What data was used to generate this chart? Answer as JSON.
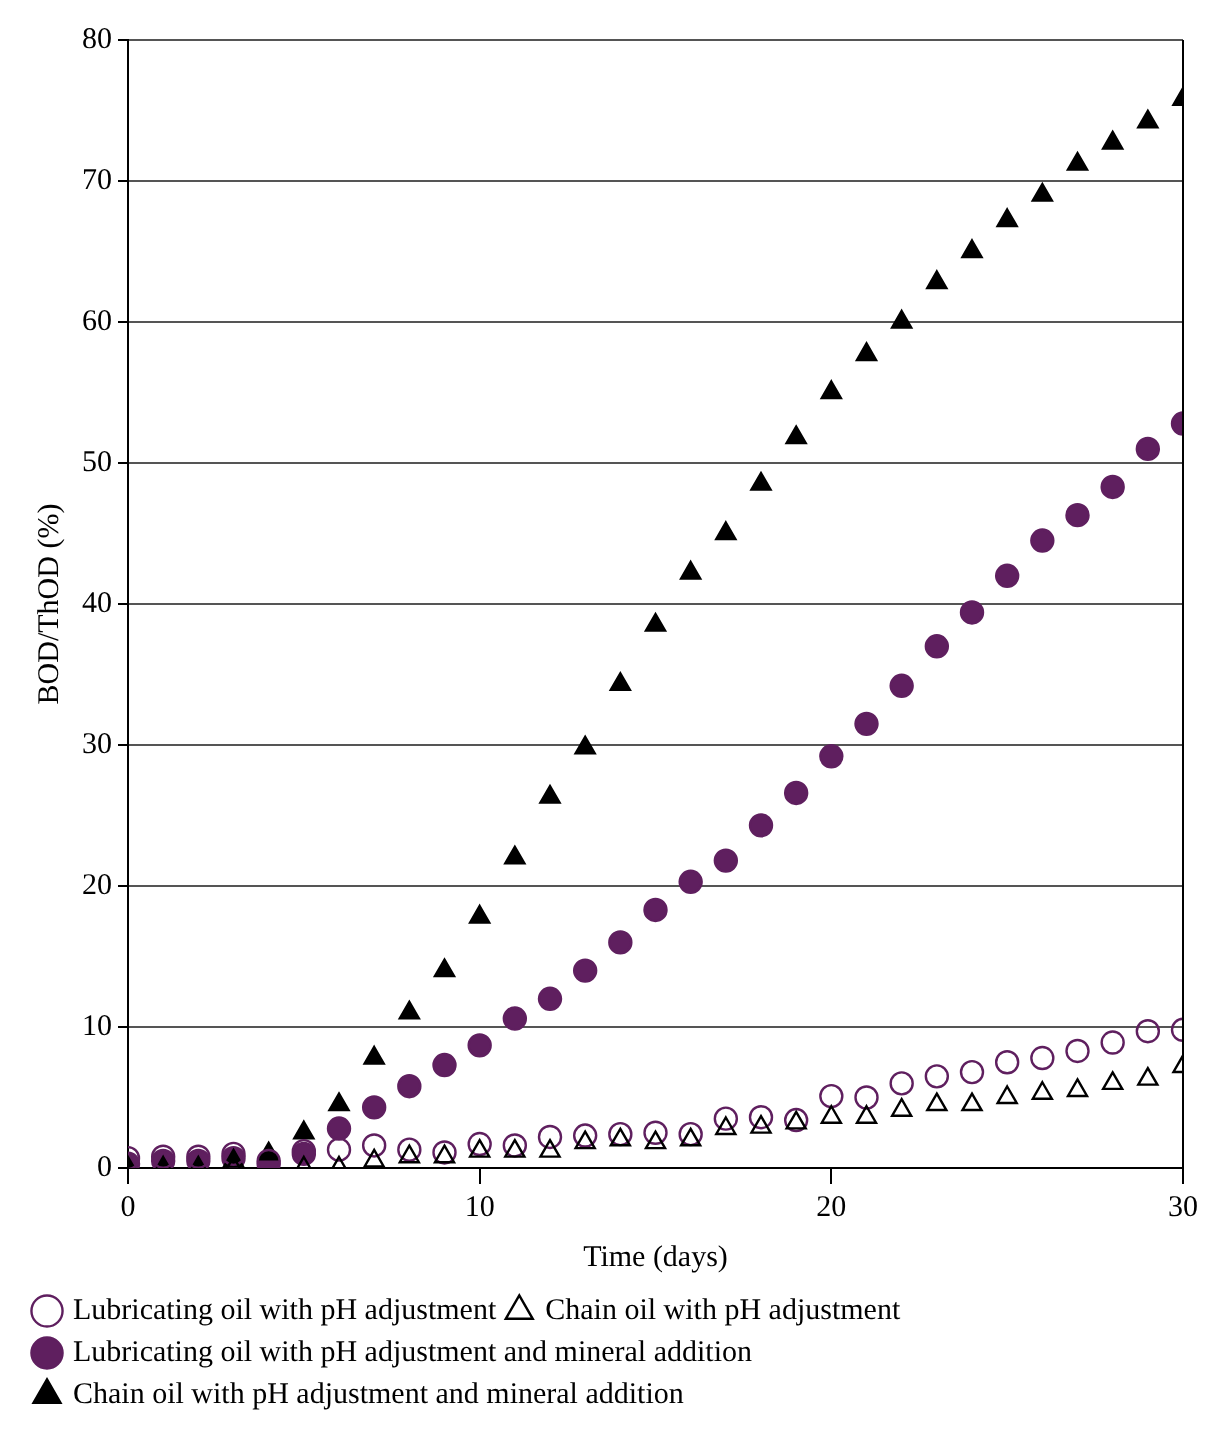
{
  "chart_data": {
    "type": "scatter",
    "xlabel": "Time (days)",
    "ylabel": "BOD/ThOD (%)",
    "x": [
      0,
      1,
      2,
      3,
      4,
      5,
      6,
      7,
      8,
      9,
      10,
      11,
      12,
      13,
      14,
      15,
      16,
      17,
      18,
      19,
      20,
      21,
      22,
      23,
      24,
      25,
      26,
      27,
      28,
      29,
      30
    ],
    "xlim": [
      0,
      30
    ],
    "xticks": [
      0,
      10,
      20,
      30
    ],
    "ylim": [
      0,
      80
    ],
    "yticks": [
      0,
      10,
      20,
      30,
      40,
      50,
      60,
      70,
      80
    ],
    "grid": "y",
    "legend": "bottom",
    "series": [
      {
        "name": "Lubricating oil with pH adjustment",
        "color": "#5f1f5f",
        "marker": "circle-open",
        "values": [
          0.7,
          0.8,
          0.8,
          1,
          0.5,
          1.2,
          1.3,
          1.6,
          1.3,
          1.1,
          1.7,
          1.6,
          2.2,
          2.3,
          2.4,
          2.5,
          2.4,
          3.5,
          3.6,
          3.4,
          5.1,
          5,
          6,
          6.5,
          6.8,
          7.5,
          7.8,
          8.3,
          8.9,
          9.7,
          9.8
        ]
      },
      {
        "name": "Chain oil with pH adjustment",
        "color": "#000000",
        "marker": "triangle-open",
        "values": [
          null,
          null,
          null,
          0,
          null,
          0,
          0,
          0.5,
          0.8,
          0.8,
          1.2,
          1.2,
          1.2,
          1.8,
          2,
          1.8,
          2,
          2.8,
          2.9,
          3.2,
          3.6,
          3.6,
          4.1,
          4.5,
          4.5,
          5,
          5.3,
          5.5,
          6,
          6.3,
          7.2
        ]
      },
      {
        "name": "Lubricating oil with pH adjustment and mineral addition",
        "color": "#5f1f5f",
        "marker": "circle",
        "values": [
          0.3,
          0.5,
          0.5,
          0.7,
          0.3,
          1,
          2.8,
          4.3,
          5.8,
          7.3,
          8.7,
          10.6,
          12,
          14,
          16,
          18.3,
          20.3,
          21.8,
          24.3,
          26.6,
          29.2,
          31.5,
          34.2,
          37,
          39.4,
          42,
          44.5,
          46.3,
          48.3,
          51,
          52.8
        ]
      },
      {
        "name": "Chain oil with pH adjustment and mineral addition",
        "color": "#000000",
        "marker": "triangle",
        "values": [
          0,
          0,
          0,
          0.5,
          1,
          2.5,
          4.5,
          7.8,
          11,
          14,
          17.8,
          22,
          26.3,
          29.8,
          34.3,
          38.5,
          42.2,
          45,
          48.5,
          51.8,
          55,
          57.7,
          60,
          62.8,
          65,
          67.2,
          69,
          71.2,
          72.7,
          74.2,
          75.8
        ]
      }
    ]
  }
}
